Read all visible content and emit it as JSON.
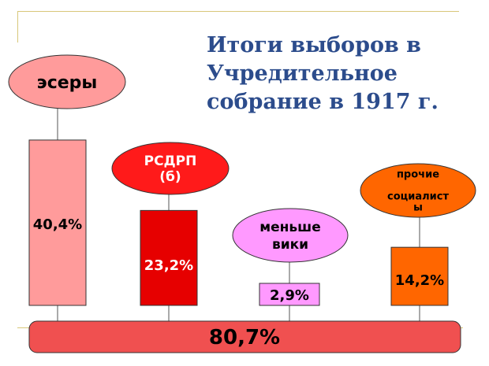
{
  "title": "Итоги выборов в Учредительное собрание в 1917 г.",
  "chart_data": {
    "type": "bar",
    "title": "Итоги выборов в Учредительное собрание в 1917 г.",
    "categories": [
      "эсеры",
      "РСДРП (б)",
      "меньшевики",
      "прочие социалисты"
    ],
    "category_lines": [
      [
        "эсеры"
      ],
      [
        "РСДРП",
        "(б)"
      ],
      [
        "меньше",
        "вики"
      ],
      [
        "прочие",
        "",
        "социалист",
        "ы"
      ]
    ],
    "values": [
      40.4,
      23.2,
      2.9,
      14.2
    ],
    "value_labels": [
      "40,4%",
      "23,2%",
      "2,9%",
      "14,2%"
    ],
    "total": 80.7,
    "total_label": "80,7%",
    "colors": {
      "bars": [
        "#ff9b9b",
        "#e60000",
        "#ff99ff",
        "#ff6600"
      ],
      "ovals": [
        "#ff9b9b",
        "#ff1a1a",
        "#ff99ff",
        "#ff6600"
      ],
      "oval_text": [
        "#000000",
        "#ffffff",
        "#000000",
        "#000000"
      ],
      "bar_text": [
        "#000000",
        "#ffffff",
        "#000000",
        "#000000"
      ],
      "base": "#f05050",
      "title": "#2c4c8c"
    }
  }
}
